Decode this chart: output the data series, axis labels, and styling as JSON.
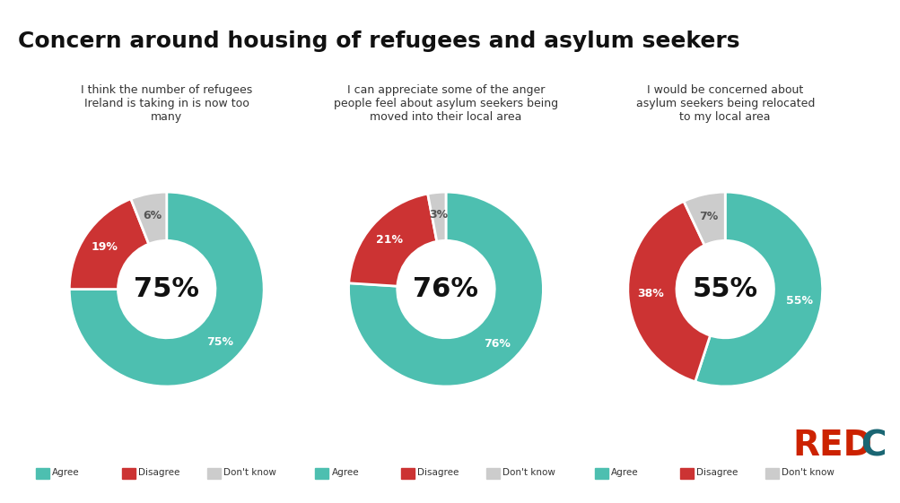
{
  "title": "Concern around housing of refugees and asylum seekers",
  "title_fontsize": 18,
  "background_color": "#ffffff",
  "teal": "#4DBFB0",
  "red": "#CC3333",
  "gray": "#CCCCCC",
  "charts": [
    {
      "values": [
        75,
        19,
        6
      ],
      "center_text": "75%",
      "label": "I think the number of refugees\nIreland is taking in is now too\nmany",
      "slice_labels": [
        "75%",
        "19%",
        "6%"
      ]
    },
    {
      "values": [
        76,
        21,
        3
      ],
      "center_text": "76%",
      "label": "I can appreciate some of the anger\npeople feel about asylum seekers being\nmoved into their local area",
      "slice_labels": [
        "76%",
        "21%",
        "3%"
      ]
    },
    {
      "values": [
        55,
        38,
        7
      ],
      "center_text": "55%",
      "label": "I would be concerned about\nasylum seekers being relocated\nto my local area",
      "slice_labels": [
        "55%",
        "38%",
        "7%"
      ]
    }
  ],
  "legend_labels": [
    "Agree",
    "Disagree",
    "Don't know"
  ],
  "redc_text": "REDC",
  "redc_red": "#CC2200",
  "redc_teal": "#1A6673"
}
